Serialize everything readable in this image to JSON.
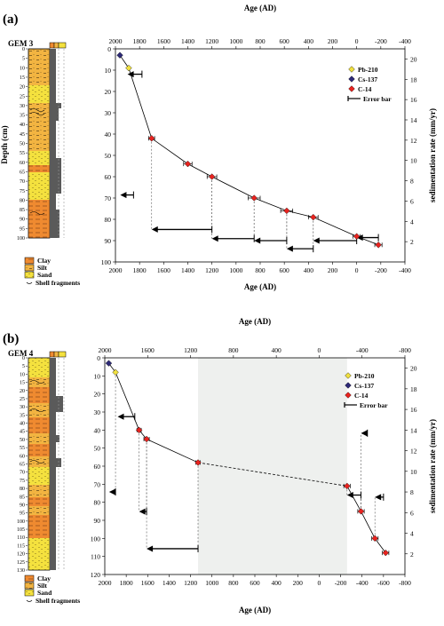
{
  "chart_data": [
    {
      "type": "scatter",
      "panel_label": "(a)",
      "core_name": "GEM 3",
      "xlabel": "Age (AD)",
      "xlabel_bottom": "Age (AD)",
      "ylabel": "Depth (cm)",
      "y2label": "sedimentation rate (mm/yr)",
      "xlim": [
        2000,
        -400
      ],
      "xticks": [
        2000,
        1800,
        1600,
        1400,
        1200,
        1000,
        800,
        600,
        400,
        200,
        0,
        -200,
        -400
      ],
      "ylim": [
        0,
        100
      ],
      "yticks": [
        0,
        10,
        20,
        30,
        40,
        50,
        60,
        70,
        80,
        90,
        100
      ],
      "y2lim": [
        0,
        21
      ],
      "y2ticks": [
        2,
        4,
        6,
        8,
        10,
        12,
        14,
        16,
        18,
        20
      ],
      "core_depth_ticks": [
        0,
        5,
        10,
        15,
        20,
        25,
        30,
        35,
        40,
        45,
        50,
        55,
        60,
        65,
        70,
        75,
        80,
        85,
        90,
        95,
        100
      ],
      "legend": [
        {
          "name": "Pb-210",
          "color": "#f0e040",
          "marker": "diamond"
        },
        {
          "name": "Cs-137",
          "color": "#2e2a78",
          "marker": "diamond"
        },
        {
          "name": "C-14",
          "color": "#e8231f",
          "marker": "diamond"
        },
        {
          "name": "Error bar",
          "marker": "errorbar"
        }
      ],
      "series": [
        {
          "name": "Cs-137",
          "points": [
            {
              "age": 1963,
              "depth": 3
            }
          ]
        },
        {
          "name": "Pb-210",
          "points": [
            {
              "age": 1890,
              "depth": 9
            }
          ]
        },
        {
          "name": "C-14",
          "points": [
            {
              "age": 1700,
              "depth": 42,
              "err": 25
            },
            {
              "age": 1400,
              "depth": 54,
              "err": 35
            },
            {
              "age": 1200,
              "depth": 60,
              "err": 40
            },
            {
              "age": 850,
              "depth": 70,
              "err": 50
            },
            {
              "age": 580,
              "depth": 76,
              "err": 50
            },
            {
              "age": 360,
              "depth": 79,
              "err": 40
            },
            {
              "age": 0,
              "depth": 88,
              "err": 30
            },
            {
              "age": -180,
              "depth": 92,
              "err": 30
            }
          ]
        }
      ],
      "rate_arrows": [
        {
          "from": 1780,
          "to": 1900,
          "rate": 18.5
        },
        {
          "from": 1850,
          "to": 1960,
          "rate": 6.6
        },
        {
          "from": 1200,
          "to": 1700,
          "rate": 3.2
        },
        {
          "from": 850,
          "to": 1200,
          "rate": 2.3
        },
        {
          "from": 580,
          "to": 850,
          "rate": 2.1
        },
        {
          "from": 360,
          "to": 580,
          "rate": 1.3
        },
        {
          "from": 0,
          "to": 360,
          "rate": 2.1
        },
        {
          "from": -180,
          "to": 0,
          "rate": 2.4
        }
      ],
      "lithology_legend": [
        "Clay",
        "Silt",
        "Sand",
        "Shell fragments"
      ]
    },
    {
      "type": "scatter",
      "panel_label": "(b)",
      "core_name": "GEM 4",
      "xlabel": "Age (AD)",
      "xlabel_bottom": "Age (AD)",
      "ylabel": "Depth (cm)",
      "y2label": "sedimentation rate (mm/yr)",
      "xlim": [
        2000,
        -800
      ],
      "xticks": [
        2000,
        1800,
        1600,
        1400,
        1200,
        1000,
        800,
        600,
        400,
        200,
        0,
        -200,
        -400,
        -600,
        -800
      ],
      "xticks_top": [
        2000,
        1600,
        1200,
        800,
        400,
        0,
        -400,
        -800
      ],
      "ylim": [
        0,
        120
      ],
      "yticks": [
        0,
        10,
        20,
        30,
        40,
        50,
        60,
        70,
        80,
        90,
        100,
        110,
        120
      ],
      "y2lim": [
        0,
        21
      ],
      "y2ticks": [
        2,
        4,
        6,
        8,
        10,
        12,
        14,
        16,
        18,
        20
      ],
      "core_depth_ticks": [
        0,
        5,
        10,
        15,
        20,
        25,
        30,
        35,
        40,
        45,
        50,
        55,
        60,
        65,
        70,
        75,
        80,
        85,
        90,
        95,
        100,
        105,
        110,
        115,
        120,
        125,
        130
      ],
      "hiatus_range": [
        1130,
        -260
      ],
      "legend": [
        {
          "name": "Pb-210",
          "color": "#f0e040",
          "marker": "diamond"
        },
        {
          "name": "Cs-137",
          "color": "#2e2a78",
          "marker": "diamond"
        },
        {
          "name": "C-14",
          "color": "#e8231f",
          "marker": "diamond"
        },
        {
          "name": "Error bar",
          "marker": "errorbar"
        }
      ],
      "series": [
        {
          "name": "Cs-137",
          "points": [
            {
              "age": 1963,
              "depth": 3
            }
          ]
        },
        {
          "name": "Pb-210",
          "points": [
            {
              "age": 1900,
              "depth": 8
            }
          ]
        },
        {
          "name": "C-14",
          "points": [
            {
              "age": 1680,
              "depth": 40,
              "err": 20
            },
            {
              "age": 1610,
              "depth": 45,
              "err": 25
            },
            {
              "age": 1130,
              "depth": 58,
              "err": 20
            },
            {
              "age": -260,
              "depth": 71,
              "err": 30
            },
            {
              "age": -390,
              "depth": 85,
              "err": 30
            },
            {
              "age": -520,
              "depth": 100,
              "err": 30
            },
            {
              "age": -620,
              "depth": 108,
              "err": 30
            }
          ]
        }
      ],
      "rate_arrows": [
        {
          "from": 1720,
          "to": 1880,
          "rate": 15.3
        },
        {
          "from": 1900,
          "to": 1960,
          "rate": 8.0
        },
        {
          "from": 1610,
          "to": 1680,
          "rate": 6.1
        },
        {
          "from": 1130,
          "to": 1610,
          "rate": 2.5
        },
        {
          "from": -390,
          "to": -260,
          "rate": 7.7
        },
        {
          "from": -450,
          "to": -390,
          "rate": 13.7
        },
        {
          "from": -600,
          "to": -520,
          "rate": 7.5
        }
      ],
      "lithology_legend": [
        "Clay",
        "Silt",
        "Sand",
        "Shell fragments"
      ]
    }
  ]
}
